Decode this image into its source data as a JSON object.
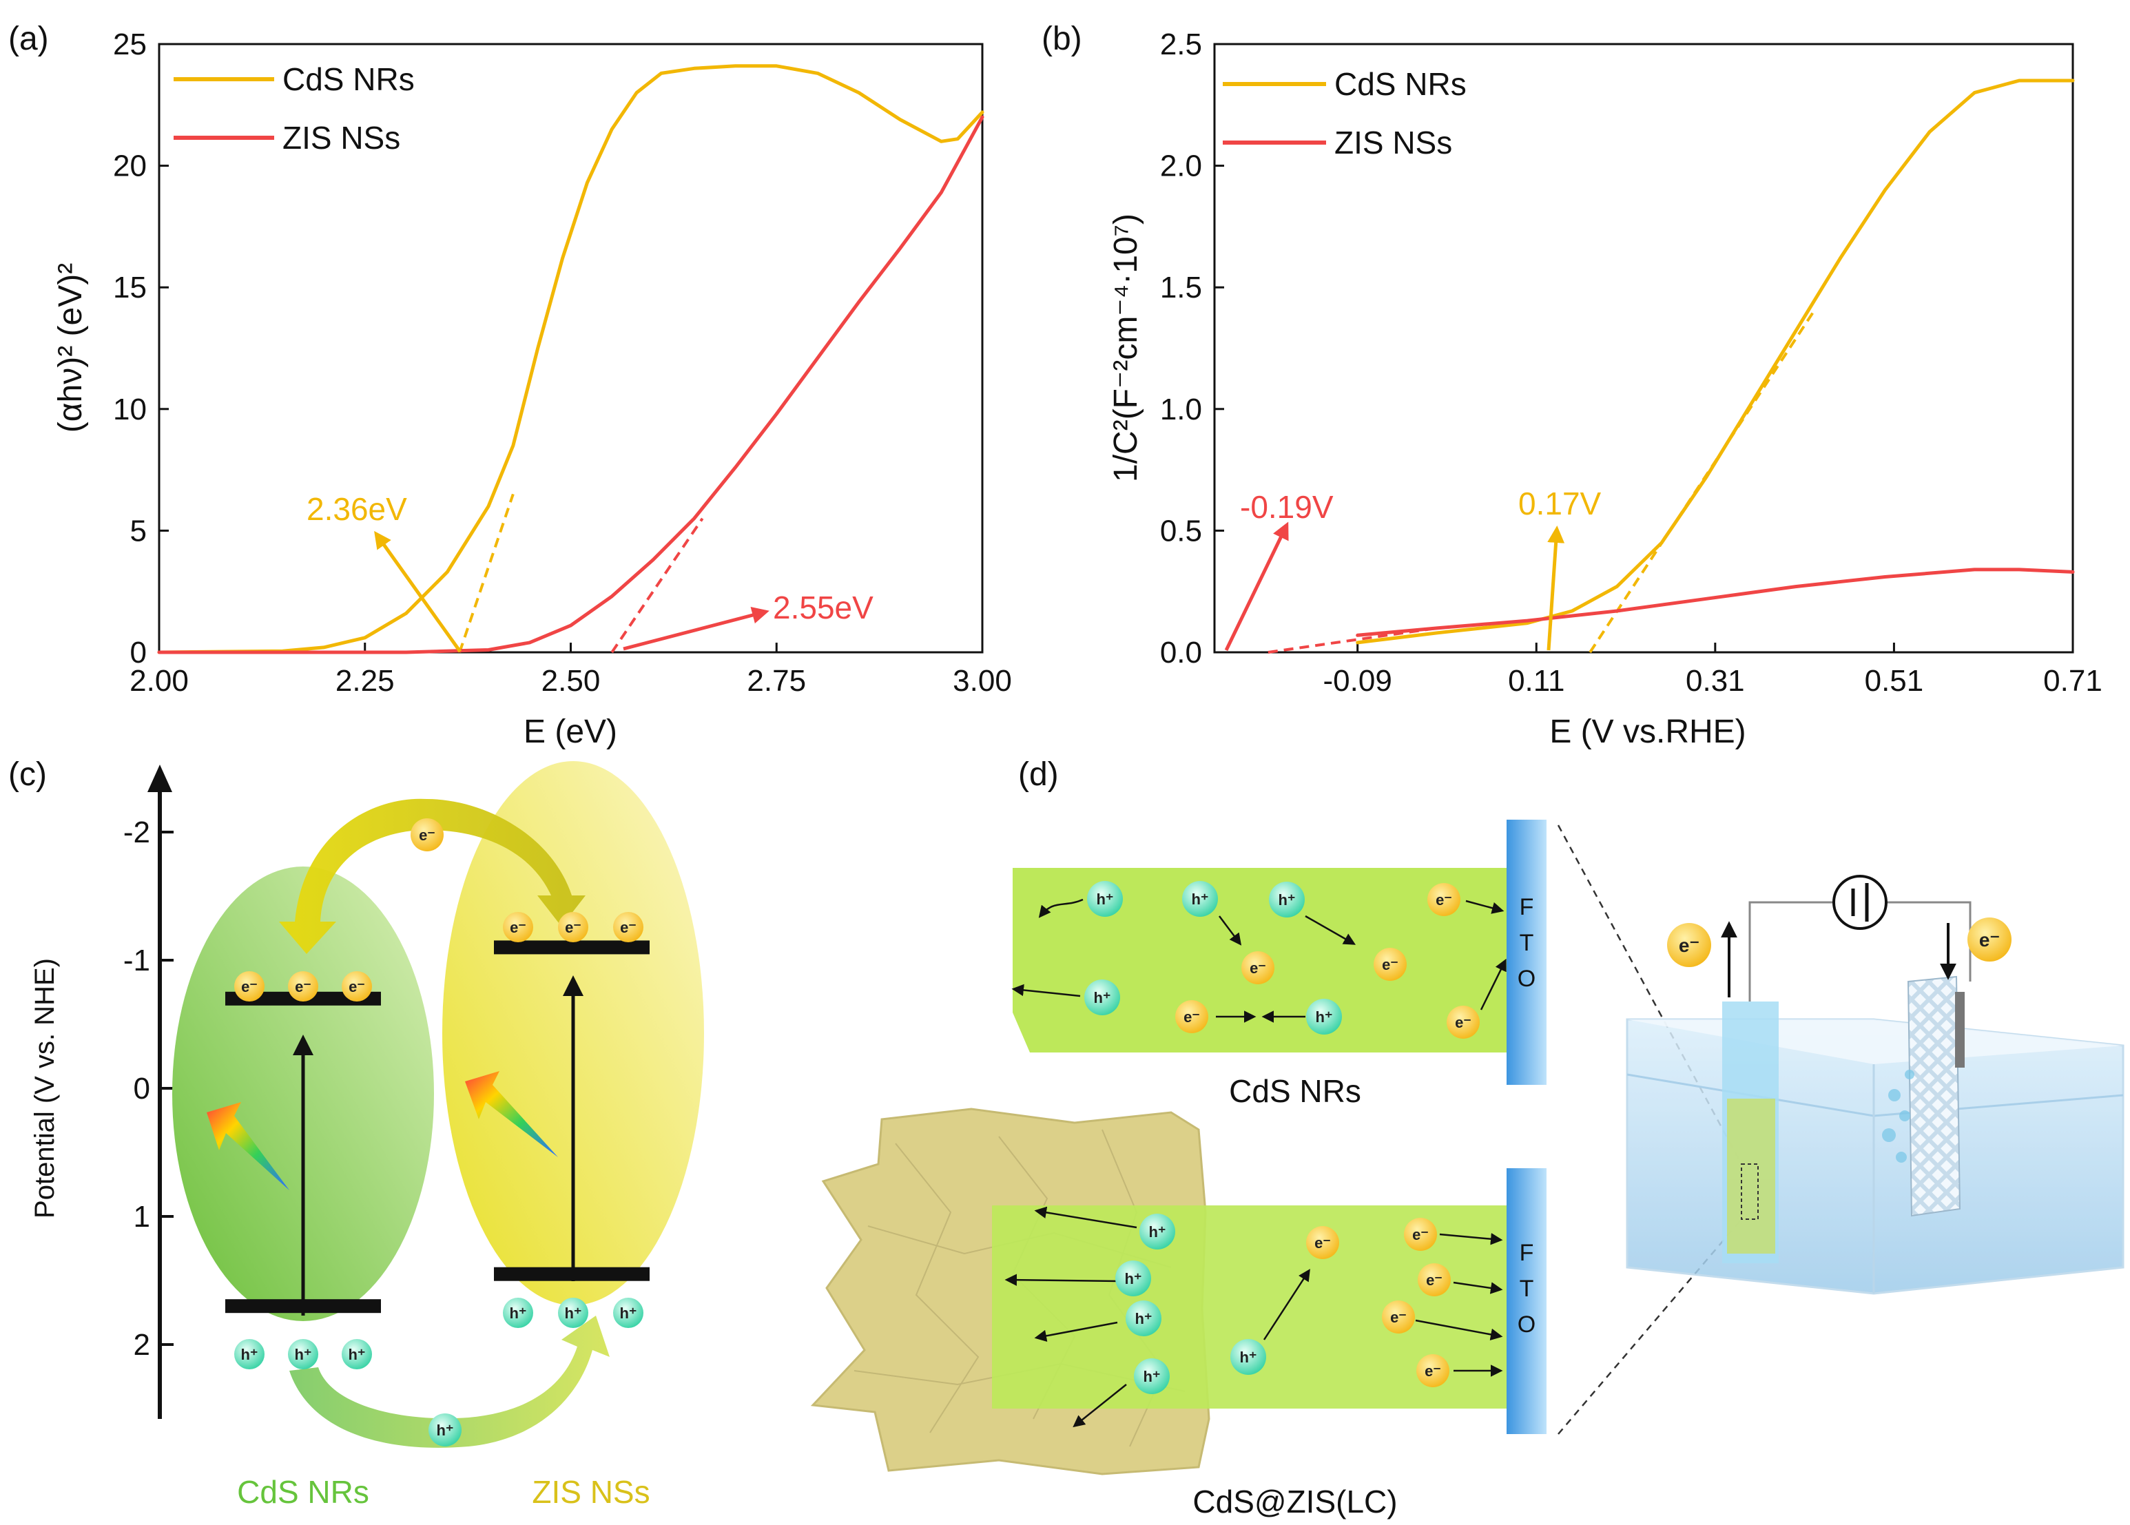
{
  "colors": {
    "cds": "#F2B705",
    "zis": "#F04545",
    "green_label": "#66C43C",
    "yellow_label": "#D9C11A",
    "fto": "#55A8E8"
  },
  "chart_data": [
    {
      "panel": "(a)",
      "type": "line",
      "xlabel": "E (eV)",
      "ylabel": "(αhν)² (eV)²",
      "xlim": [
        2.0,
        3.0
      ],
      "ylim": [
        0,
        25
      ],
      "xticks": [
        "2.00",
        "2.25",
        "2.50",
        "2.75",
        "3.00"
      ],
      "yticks": [
        "0",
        "5",
        "10",
        "15",
        "20",
        "25"
      ],
      "legend": [
        "CdS NRs",
        "ZIS NSs"
      ],
      "series": [
        {
          "name": "CdS NRs",
          "x": [
            2.0,
            2.15,
            2.2,
            2.25,
            2.3,
            2.35,
            2.4,
            2.43,
            2.46,
            2.49,
            2.52,
            2.55,
            2.58,
            2.61,
            2.65,
            2.7,
            2.75,
            2.8,
            2.85,
            2.9,
            2.95,
            2.97,
            3.0
          ],
          "y": [
            0.0,
            0.05,
            0.2,
            0.6,
            1.6,
            3.3,
            6.0,
            8.5,
            12.5,
            16.2,
            19.3,
            21.5,
            23.0,
            23.8,
            24.0,
            24.1,
            24.1,
            23.8,
            23.0,
            21.9,
            21.0,
            21.1,
            22.2
          ]
        },
        {
          "name": "ZIS NSs",
          "x": [
            2.0,
            2.3,
            2.4,
            2.45,
            2.5,
            2.55,
            2.6,
            2.65,
            2.7,
            2.75,
            2.8,
            2.85,
            2.9,
            2.95,
            3.0
          ],
          "y": [
            0.0,
            0.0,
            0.1,
            0.4,
            1.1,
            2.3,
            3.8,
            5.5,
            7.6,
            9.8,
            12.1,
            14.4,
            16.6,
            18.9,
            22.0
          ]
        }
      ],
      "tangents": [
        {
          "name": "CdS NRs tangent",
          "x": [
            2.365,
            2.43
          ],
          "y": [
            0,
            6.5
          ]
        },
        {
          "name": "ZIS NSs tangent",
          "x": [
            2.55,
            2.66
          ],
          "y": [
            0,
            5.5
          ]
        }
      ],
      "annotations": [
        {
          "text": "2.36eV",
          "series": "CdS NRs",
          "at_x": 2.36
        },
        {
          "text": "2.55eV",
          "series": "ZIS NSs",
          "at_x": 2.55
        }
      ]
    },
    {
      "panel": "(b)",
      "type": "line",
      "xlabel": "E (V vs.RHE)",
      "ylabel": "1/C²(F⁻²cm⁻⁴·10⁷)",
      "xlim": [
        -0.25,
        0.71
      ],
      "ylim": [
        0,
        2.5
      ],
      "xticks": [
        "-0.09",
        "0.11",
        "0.31",
        "0.51",
        "0.71"
      ],
      "yticks": [
        "0.0",
        "0.5",
        "1.0",
        "1.5",
        "2.0",
        "2.5"
      ],
      "legend": [
        "CdS NRs",
        "ZIS NSs"
      ],
      "series": [
        {
          "name": "CdS NRs",
          "x": [
            -0.09,
            0.0,
            0.1,
            0.15,
            0.2,
            0.25,
            0.3,
            0.35,
            0.4,
            0.45,
            0.5,
            0.55,
            0.6,
            0.65,
            0.71
          ],
          "y": [
            0.04,
            0.08,
            0.12,
            0.17,
            0.27,
            0.45,
            0.72,
            1.02,
            1.32,
            1.62,
            1.9,
            2.14,
            2.3,
            2.35,
            2.35
          ]
        },
        {
          "name": "ZIS NSs",
          "x": [
            -0.09,
            0.0,
            0.1,
            0.2,
            0.3,
            0.4,
            0.5,
            0.6,
            0.65,
            0.71
          ],
          "y": [
            0.07,
            0.1,
            0.13,
            0.17,
            0.22,
            0.27,
            0.31,
            0.34,
            0.34,
            0.33
          ]
        }
      ],
      "tangents": [
        {
          "name": "CdS NRs tangent",
          "x": [
            0.17,
            0.42
          ],
          "y": [
            0,
            1.4
          ]
        },
        {
          "name": "ZIS NSs tangent",
          "x": [
            -0.19,
            0.0
          ],
          "y": [
            0,
            0.1
          ]
        }
      ],
      "annotations": [
        {
          "text": "-0.19V",
          "series": "ZIS NSs",
          "at_x": -0.19
        },
        {
          "text": "0.17V",
          "series": "CdS NRs",
          "at_x": 0.17
        }
      ]
    }
  ],
  "panel_c": {
    "label": "(c)",
    "ylabel": "Potential (V vs. NHE)",
    "yticks": [
      "-2",
      "-1",
      "0",
      "1",
      "2"
    ],
    "ytick_values": [
      -2,
      -1,
      0,
      1,
      2
    ],
    "cds_cb": -0.7,
    "cds_vb": 1.7,
    "zis_cb": -1.1,
    "zis_vb": 1.45,
    "electron": "e⁻",
    "hole": "h⁺",
    "cds_label": "CdS NRs",
    "zis_label": "ZIS NSs"
  },
  "panel_d": {
    "label": "(d)",
    "top_label": "CdS NRs",
    "bottom_label": "CdS@ZIS(LC)",
    "fto": [
      "F",
      "T",
      "O"
    ],
    "electron": "e⁻",
    "hole": "h⁺"
  }
}
